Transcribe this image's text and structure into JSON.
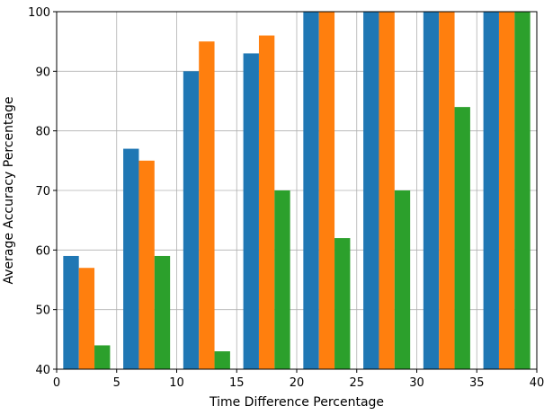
{
  "chart_data": {
    "type": "bar",
    "title": "",
    "xlabel": "Time Difference Percentage",
    "ylabel": "Average Accuracy Percentage",
    "xlim": [
      0,
      40
    ],
    "ylim": [
      40,
      100
    ],
    "xticks": [
      "0",
      "5",
      "10",
      "15",
      "20",
      "25",
      "30",
      "35",
      "40"
    ],
    "yticks": [
      "40",
      "50",
      "60",
      "70",
      "80",
      "90",
      "100"
    ],
    "grid": true,
    "legend": "none",
    "x": [
      2.5,
      7.5,
      12.5,
      17.5,
      22.5,
      27.5,
      32.5,
      37.5
    ],
    "bar_width_data_units": 1.3,
    "series": [
      {
        "color": "#1f77b4",
        "values": [
          59,
          77,
          90,
          93,
          100,
          100,
          100,
          100
        ]
      },
      {
        "color": "#ff7f0e",
        "values": [
          57,
          75,
          95,
          96,
          100,
          100,
          100,
          100
        ]
      },
      {
        "color": "#2ca02c",
        "values": [
          44,
          59,
          43,
          70,
          62,
          70,
          84,
          100
        ]
      }
    ]
  }
}
